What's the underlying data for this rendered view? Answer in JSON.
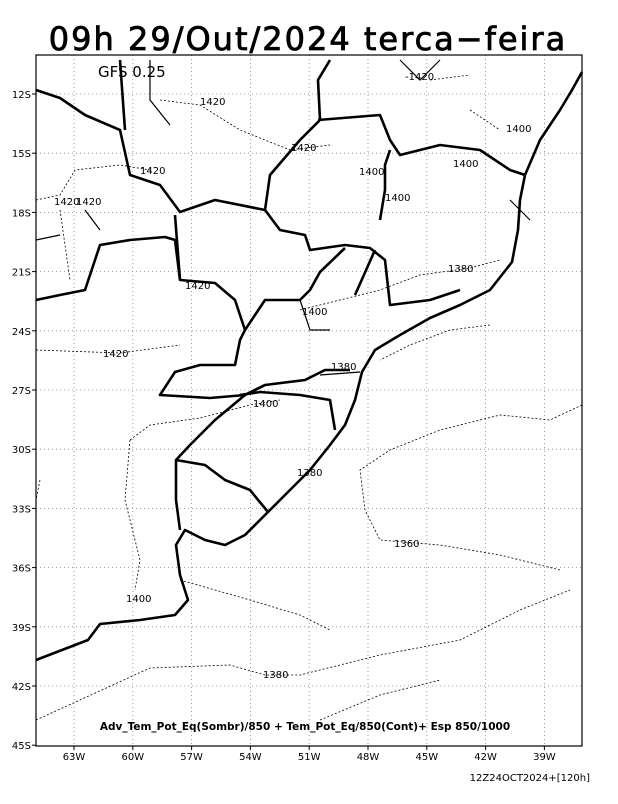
{
  "header": {
    "title": "09h 29/Out/2024 terca−feira"
  },
  "map": {
    "model": "GFS 0.25",
    "lat_labels": [
      "12S",
      "15S",
      "18S",
      "21S",
      "24S",
      "27S",
      "30S",
      "33S",
      "36S",
      "39S",
      "42S",
      "45S"
    ],
    "lon_labels": [
      "63W",
      "60W",
      "57W",
      "54W",
      "51W",
      "48W",
      "45W",
      "42W",
      "39W"
    ],
    "contour_labels": [
      "-1420",
      "1420",
      "1400",
      "1420",
      "1400",
      "1400",
      "1420",
      "1400",
      "1420",
      "1420",
      "1380",
      "1420",
      "1400",
      "1420",
      "1380",
      "1400",
      "1380",
      "1360",
      "1400",
      "1380"
    ],
    "caption": "Adv_Tem_Pot_Eq(Sombr)/850 + Tem_Pot_Eq/850(Cont)+ Esp 850/1000",
    "run": "12Z24OCT2024+[120h]"
  }
}
